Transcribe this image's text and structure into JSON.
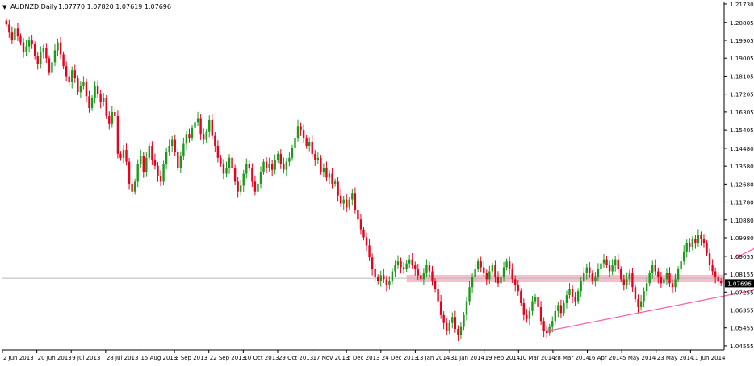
{
  "header": {
    "triangle": "▼",
    "symbol": "AUDNZD,Daily",
    "ohlc": "1.07770 1.07820 1.07619 1.07696"
  },
  "colors": {
    "up": "#1a9a1a",
    "down": "#e8001c",
    "grid": "#c8c8c8",
    "axis": "#000000",
    "support_zone": "#f7b3c4",
    "trendline": "#ff5aa8",
    "price_tag_bg": "#000000"
  },
  "chart_data": {
    "type": "candlestick",
    "symbol": "AUDNZD",
    "timeframe": "Daily",
    "ylim": [
      1.0435,
      1.2185
    ],
    "y_ticks": [
      "1.21730",
      "1.20805",
      "1.19905",
      "1.19005",
      "1.18105",
      "1.17205",
      "1.16305",
      "1.15405",
      "1.14480",
      "1.13580",
      "1.12680",
      "1.11780",
      "1.10880",
      "1.09980",
      "1.09055",
      "1.08155",
      "1.07255",
      "1.06355",
      "1.05455",
      "1.04555"
    ],
    "x_ticks": [
      "2 Jun 2013",
      "20 Jun 2013",
      "9 Jul 2013",
      "28 Jul 2013",
      "15 Aug 2013",
      "3 Sep 2013",
      "22 Sep 2013",
      "10 Oct 2013",
      "29 Oct 2013",
      "17 Nov 2013",
      "5 Dec 2013",
      "24 Dec 2013",
      "13 Jan 2014",
      "31 Jan 2014",
      "19 Feb 2014",
      "10 Mar 2014",
      "28 Mar 2014",
      "16 Apr 2014",
      "5 May 2014",
      "23 May 2014",
      "11 Jun 2014"
    ],
    "current_price": "1.07696",
    "closes": [
      1.207,
      1.203,
      1.199,
      1.205,
      1.201,
      1.198,
      1.193,
      1.196,
      1.199,
      1.197,
      1.191,
      1.187,
      1.193,
      1.195,
      1.19,
      1.183,
      1.188,
      1.194,
      1.198,
      1.192,
      1.186,
      1.181,
      1.178,
      1.184,
      1.18,
      1.173,
      1.176,
      1.178,
      1.171,
      1.165,
      1.17,
      1.176,
      1.172,
      1.168,
      1.17,
      1.161,
      1.157,
      1.163,
      1.161,
      1.142,
      1.14,
      1.144,
      1.138,
      1.127,
      1.123,
      1.128,
      1.137,
      1.141,
      1.133,
      1.14,
      1.146,
      1.139,
      1.136,
      1.131,
      1.128,
      1.137,
      1.143,
      1.146,
      1.149,
      1.143,
      1.135,
      1.141,
      1.147,
      1.152,
      1.15,
      1.155,
      1.158,
      1.16,
      1.152,
      1.149,
      1.153,
      1.159,
      1.151,
      1.146,
      1.14,
      1.137,
      1.132,
      1.135,
      1.14,
      1.135,
      1.128,
      1.123,
      1.126,
      1.132,
      1.137,
      1.135,
      1.128,
      1.123,
      1.127,
      1.133,
      1.138,
      1.135,
      1.137,
      1.134,
      1.139,
      1.142,
      1.137,
      1.134,
      1.138,
      1.14,
      1.145,
      1.15,
      1.156,
      1.154,
      1.15,
      1.146,
      1.148,
      1.142,
      1.139,
      1.14,
      1.133,
      1.135,
      1.13,
      1.132,
      1.127,
      1.128,
      1.121,
      1.117,
      1.119,
      1.115,
      1.119,
      1.122,
      1.114,
      1.109,
      1.104,
      1.1,
      1.096,
      1.09,
      1.084,
      1.08,
      1.078,
      1.081,
      1.079,
      1.076,
      1.078,
      1.083,
      1.086,
      1.088,
      1.085,
      1.084,
      1.087,
      1.089,
      1.086,
      1.084,
      1.081,
      1.079,
      1.082,
      1.086,
      1.083,
      1.078,
      1.074,
      1.068,
      1.061,
      1.057,
      1.053,
      1.057,
      1.06,
      1.054,
      1.051,
      1.055,
      1.061,
      1.068,
      1.075,
      1.08,
      1.084,
      1.088,
      1.085,
      1.082,
      1.079,
      1.083,
      1.086,
      1.08,
      1.077,
      1.08,
      1.085,
      1.088,
      1.084,
      1.079,
      1.076,
      1.073,
      1.067,
      1.061,
      1.059,
      1.063,
      1.068,
      1.07,
      1.065,
      1.058,
      1.053,
      1.052,
      1.055,
      1.058,
      1.063,
      1.066,
      1.062,
      1.067,
      1.071,
      1.074,
      1.07,
      1.068,
      1.073,
      1.078,
      1.082,
      1.085,
      1.082,
      1.078,
      1.08,
      1.084,
      1.087,
      1.089,
      1.086,
      1.083,
      1.086,
      1.089,
      1.084,
      1.079,
      1.076,
      1.079,
      1.082,
      1.075,
      1.069,
      1.065,
      1.068,
      1.073,
      1.077,
      1.082,
      1.086,
      1.083,
      1.08,
      1.077,
      1.079,
      1.082,
      1.077,
      1.075,
      1.079,
      1.084,
      1.088,
      1.093,
      1.097,
      1.095,
      1.099,
      1.097,
      1.101,
      1.099,
      1.097,
      1.092,
      1.086,
      1.083,
      1.08,
      1.078,
      1.077
    ],
    "support_zone": {
      "from": 1.0775,
      "to": 1.0812
    },
    "horizontal_line": 1.0795,
    "trendlines": [
      {
        "from": {
          "index": 190,
          "price": 1.0532
        },
        "to": {
          "index": 270,
          "price": 1.076
        }
      },
      {
        "from": {
          "index": 256,
          "price": 1.0905
        },
        "to": {
          "index": 266,
          "price": 1.0975
        }
      }
    ]
  }
}
